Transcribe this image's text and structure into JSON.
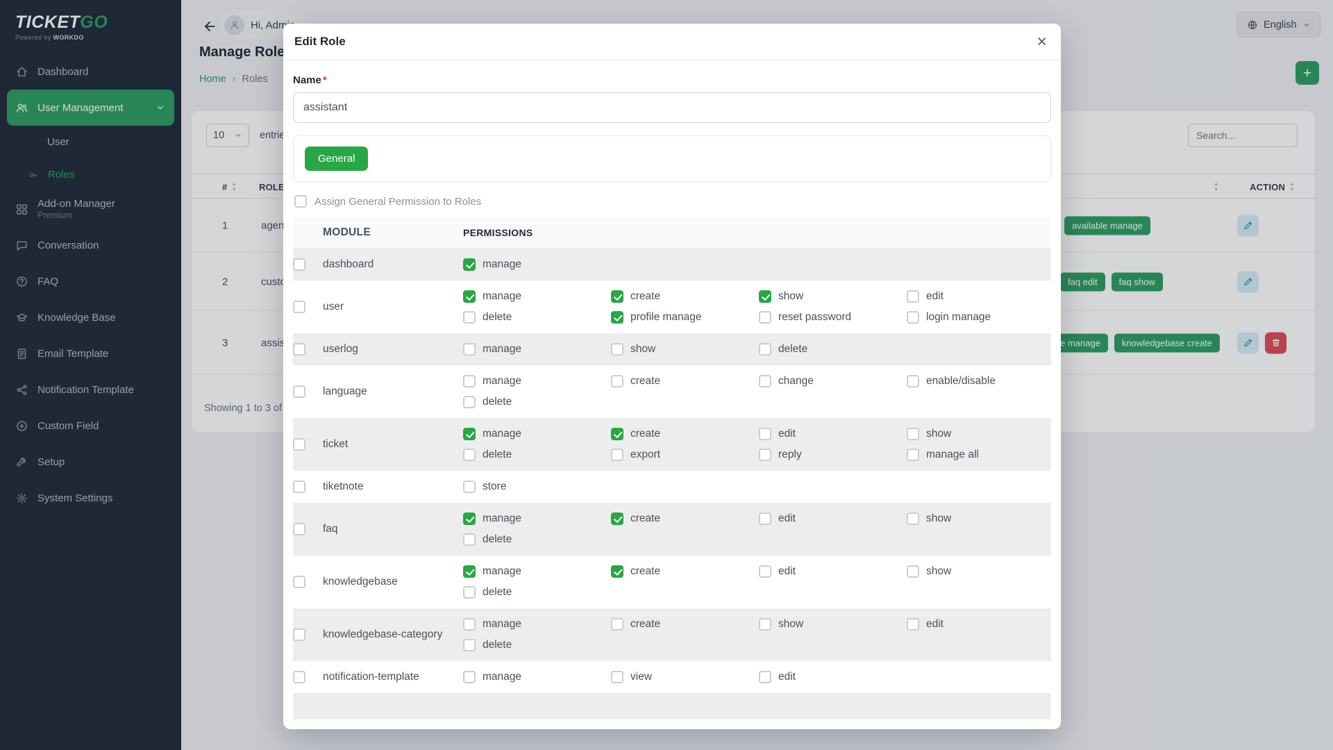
{
  "colors": {
    "accent_green": "#2d9e61",
    "check_green": "#28a745",
    "sidebar_bg": "#212b3b",
    "danger_red": "#dd4b57",
    "edit_button_bg": "#d7edf6",
    "edit_button_icon": "#2f9dbd"
  },
  "glyphs": {
    "close": "×"
  },
  "brand": {
    "name_primary": "TICKET",
    "name_secondary": "GO",
    "powered_prefix": "Powered by",
    "powered_brand": "WORKDO"
  },
  "topbar": {
    "greeting": "Hi, Admin",
    "language": "English"
  },
  "page": {
    "title": "Manage Roles",
    "breadcrumb": {
      "home": "Home",
      "separator": "›",
      "current": "Roles"
    },
    "add_button": "+"
  },
  "sidebar": {
    "items": [
      {
        "id": "dashboard",
        "label": "Dashboard",
        "icon": "home"
      },
      {
        "id": "user-management",
        "label": "User Management",
        "icon": "users",
        "active": true,
        "expanded": true
      },
      {
        "id": "user",
        "label": "User",
        "sub": true
      },
      {
        "id": "roles",
        "label": "Roles",
        "icon": "key",
        "sub": true,
        "current": true
      },
      {
        "id": "addon-manager",
        "label": "Add-on Manager",
        "sublabel": "Premium",
        "icon": "grid"
      },
      {
        "id": "conversation",
        "label": "Conversation",
        "icon": "chat"
      },
      {
        "id": "faq",
        "label": "FAQ",
        "icon": "question"
      },
      {
        "id": "knowledge-base",
        "label": "Knowledge Base",
        "icon": "cap"
      },
      {
        "id": "email-template",
        "label": "Email Template",
        "icon": "document"
      },
      {
        "id": "notification-template",
        "label": "Notification Template",
        "icon": "share"
      },
      {
        "id": "custom-field",
        "label": "Custom Field",
        "icon": "plus-circle"
      },
      {
        "id": "setup",
        "label": "Setup",
        "icon": "wrench"
      },
      {
        "id": "system-settings",
        "label": "System Settings",
        "icon": "gear"
      }
    ]
  },
  "roles_table": {
    "length_value": "10",
    "entries_label": "entries",
    "search_placeholder": "Search...",
    "headers": {
      "index": "#",
      "role": "ROLE",
      "action": "ACTION"
    },
    "rows": [
      {
        "index": "1",
        "role": "agent",
        "badges": [
          "available manage"
        ],
        "can_delete": false
      },
      {
        "index": "2",
        "role": "customer",
        "badges": [
          "faq edit",
          "faq show"
        ],
        "can_delete": false
      },
      {
        "index": "3",
        "role": "assistant",
        "badges": [
          "knowledgebase manage",
          "knowledgebase create"
        ],
        "can_delete": true
      }
    ],
    "footer_info": "Showing 1 to 3 of 3 entries"
  },
  "modal": {
    "title": "Edit Role",
    "name_label": "Name",
    "required_mark": "*",
    "name_value": "assistant",
    "general_tab": "General",
    "assign_all_label": "Assign General Permission to Roles",
    "module_header": "MODULE",
    "permissions_header": "PERMISSIONS",
    "modules": [
      {
        "name": "dashboard",
        "permissions": [
          {
            "label": "manage",
            "checked": true
          }
        ]
      },
      {
        "name": "user",
        "permissions": [
          {
            "label": "manage",
            "checked": true
          },
          {
            "label": "create",
            "checked": true
          },
          {
            "label": "show",
            "checked": true
          },
          {
            "label": "edit",
            "checked": false
          },
          {
            "label": "delete",
            "checked": false
          },
          {
            "label": "profile manage",
            "checked": true
          },
          {
            "label": "reset password",
            "checked": false
          },
          {
            "label": "login manage",
            "checked": false
          }
        ]
      },
      {
        "name": "userlog",
        "permissions": [
          {
            "label": "manage",
            "checked": false
          },
          {
            "label": "show",
            "checked": false
          },
          {
            "label": "delete",
            "checked": false
          }
        ]
      },
      {
        "name": "language",
        "permissions": [
          {
            "label": "manage",
            "checked": false
          },
          {
            "label": "create",
            "checked": false
          },
          {
            "label": "change",
            "checked": false
          },
          {
            "label": "enable/disable",
            "checked": false
          },
          {
            "label": "delete",
            "checked": false
          }
        ]
      },
      {
        "name": "ticket",
        "permissions": [
          {
            "label": "manage",
            "checked": true
          },
          {
            "label": "create",
            "checked": true
          },
          {
            "label": "edit",
            "checked": false
          },
          {
            "label": "show",
            "checked": false
          },
          {
            "label": "delete",
            "checked": false
          },
          {
            "label": "export",
            "checked": false
          },
          {
            "label": "reply",
            "checked": false
          },
          {
            "label": "manage all",
            "checked": false
          }
        ]
      },
      {
        "name": "tiketnote",
        "permissions": [
          {
            "label": "store",
            "checked": false
          }
        ]
      },
      {
        "name": "faq",
        "permissions": [
          {
            "label": "manage",
            "checked": true
          },
          {
            "label": "create",
            "checked": true
          },
          {
            "label": "edit",
            "checked": false
          },
          {
            "label": "show",
            "checked": false
          },
          {
            "label": "delete",
            "checked": false
          }
        ]
      },
      {
        "name": "knowledgebase",
        "permissions": [
          {
            "label": "manage",
            "checked": true
          },
          {
            "label": "create",
            "checked": true
          },
          {
            "label": "edit",
            "checked": false
          },
          {
            "label": "show",
            "checked": false
          },
          {
            "label": "delete",
            "checked": false
          }
        ]
      },
      {
        "name": "knowledgebase-category",
        "permissions": [
          {
            "label": "manage",
            "checked": false
          },
          {
            "label": "create",
            "checked": false
          },
          {
            "label": "show",
            "checked": false
          },
          {
            "label": "edit",
            "checked": false
          },
          {
            "label": "delete",
            "checked": false
          }
        ]
      },
      {
        "name": "notification-template",
        "permissions": [
          {
            "label": "manage",
            "checked": false
          },
          {
            "label": "view",
            "checked": false
          },
          {
            "label": "edit",
            "checked": false
          }
        ]
      }
    ]
  }
}
